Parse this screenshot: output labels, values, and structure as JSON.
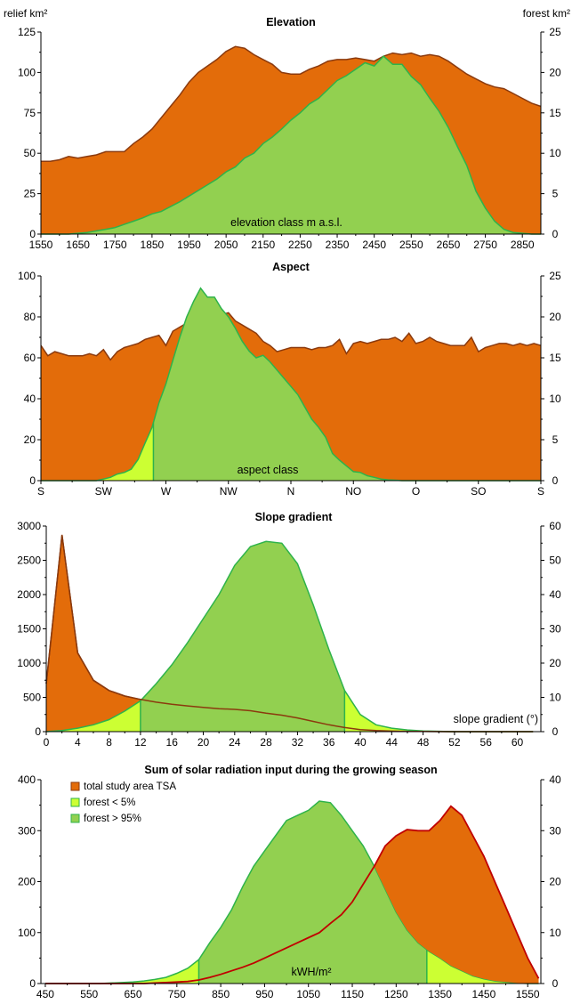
{
  "colors": {
    "relief_fill": "#E36C0A",
    "relief_line": "#8B3A0E",
    "forest_fill": "#92D050",
    "forest_line": "#2EB34A",
    "lowforest_fill": "#CCFF33",
    "lowforest_line": "#2EB34A",
    "radiation_line": "#C00000"
  },
  "axis_units": {
    "left": "relief km²",
    "right": "forest km²"
  },
  "chart_data": [
    {
      "id": "elevation",
      "type": "area",
      "title": "Elevation",
      "xlabel_inside": "elevation class m a.s.l.",
      "xlim": [
        1550,
        2900
      ],
      "ylim_left": [
        0,
        125
      ],
      "ylim_right": [
        0,
        25
      ],
      "xticks": [
        1550,
        1650,
        1750,
        1850,
        1950,
        2050,
        2150,
        2250,
        2350,
        2450,
        2550,
        2650,
        2750,
        2850
      ],
      "yticks_left": [
        0,
        25,
        50,
        75,
        100,
        125
      ],
      "yticks_right": [
        0,
        5,
        10,
        15,
        20,
        25
      ],
      "x": [
        1550,
        1575,
        1600,
        1625,
        1650,
        1675,
        1700,
        1725,
        1750,
        1775,
        1800,
        1825,
        1850,
        1875,
        1900,
        1925,
        1950,
        1975,
        2000,
        2025,
        2050,
        2075,
        2100,
        2125,
        2150,
        2175,
        2200,
        2225,
        2250,
        2275,
        2300,
        2325,
        2350,
        2375,
        2400,
        2425,
        2450,
        2475,
        2500,
        2525,
        2550,
        2575,
        2600,
        2625,
        2650,
        2675,
        2700,
        2725,
        2750,
        2775,
        2800,
        2825,
        2850,
        2875,
        2900
      ],
      "series": [
        {
          "name": "relief",
          "axis": "left",
          "values": [
            45,
            45,
            46,
            48,
            47,
            48,
            49,
            51,
            51,
            51,
            56,
            60,
            65,
            72,
            79,
            86,
            94,
            100,
            104,
            108,
            113,
            116,
            115,
            111,
            108,
            105,
            100,
            99,
            99,
            102,
            104,
            107,
            108,
            108,
            109,
            108,
            107,
            110,
            112,
            111,
            112,
            110,
            111,
            110,
            107,
            103,
            99,
            96,
            93,
            91,
            90,
            87,
            84,
            81,
            79
          ]
        },
        {
          "name": "forest",
          "axis": "right",
          "values": [
            0,
            0,
            0,
            0,
            0.1,
            0.2,
            0.4,
            0.6,
            0.8,
            1.2,
            1.6,
            2.0,
            2.5,
            2.8,
            3.4,
            4.0,
            4.7,
            5.4,
            6.1,
            6.8,
            7.7,
            8.3,
            9.4,
            10.0,
            11.2,
            12.0,
            13.0,
            14.1,
            15.0,
            16.1,
            16.8,
            17.9,
            19.0,
            19.6,
            20.4,
            21.2,
            20.8,
            22.0,
            21.0,
            21.0,
            19.5,
            18.5,
            16.8,
            15.2,
            13.2,
            10.8,
            8.5,
            5.3,
            3.2,
            1.6,
            0.6,
            0.2,
            0.1,
            0,
            0
          ]
        }
      ]
    },
    {
      "id": "aspect",
      "type": "area",
      "title": "Aspect",
      "xlabel_inside": "aspect class",
      "xlim": [
        0,
        360
      ],
      "ylim_left": [
        0,
        100
      ],
      "ylim_right": [
        0,
        25
      ],
      "xticks": [
        0,
        45,
        90,
        135,
        180,
        225,
        270,
        315,
        360
      ],
      "xticklabels": [
        "S",
        "SW",
        "W",
        "NW",
        "N",
        "NO",
        "O",
        "SO",
        "S"
      ],
      "yticks_left": [
        0,
        20,
        40,
        60,
        80,
        100
      ],
      "yticks_right": [
        0,
        5,
        10,
        15,
        20,
        25
      ],
      "lowforest_range": [
        81,
        251
      ],
      "x": [
        0,
        5,
        10,
        15,
        20,
        25,
        30,
        35,
        40,
        45,
        50,
        55,
        60,
        65,
        70,
        75,
        80,
        85,
        90,
        95,
        100,
        105,
        110,
        115,
        120,
        125,
        130,
        135,
        140,
        145,
        150,
        155,
        160,
        165,
        170,
        175,
        180,
        185,
        190,
        195,
        200,
        205,
        210,
        215,
        220,
        225,
        230,
        235,
        240,
        245,
        250,
        255,
        260,
        265,
        270,
        275,
        280,
        285,
        290,
        295,
        300,
        305,
        310,
        315,
        320,
        325,
        330,
        335,
        340,
        345,
        350,
        355,
        360
      ],
      "series": [
        {
          "name": "relief",
          "axis": "left",
          "values": [
            66,
            61,
            63,
            62,
            61,
            61,
            61,
            62,
            61,
            64,
            59,
            63,
            65,
            66,
            67,
            69,
            70,
            71,
            66,
            73,
            75,
            77,
            78,
            82,
            83,
            89,
            81,
            82,
            78,
            76,
            74,
            72,
            68,
            66,
            63,
            64,
            65,
            65,
            65,
            64,
            65,
            65,
            66,
            69,
            62,
            67,
            68,
            67,
            68,
            69,
            69,
            70,
            68,
            72,
            67,
            68,
            70,
            68,
            67,
            66,
            66,
            66,
            70,
            63,
            65,
            66,
            67,
            67,
            66,
            67,
            66,
            67,
            66
          ]
        },
        {
          "name": "forest",
          "axis": "right",
          "values": [
            0,
            0,
            0,
            0,
            0,
            0,
            0,
            0,
            0,
            0.2,
            0.4,
            0.8,
            1.0,
            1.4,
            2.6,
            4.6,
            6.5,
            9.5,
            11.8,
            14.7,
            17.5,
            20.0,
            21.9,
            23.5,
            22.4,
            22.4,
            21.0,
            20.0,
            18.6,
            17.0,
            15.8,
            15.0,
            15.3,
            14.5,
            13.5,
            12.5,
            11.5,
            10.5,
            9.0,
            7.5,
            6.5,
            5.3,
            3.3,
            2.5,
            1.8,
            1.1,
            1.0,
            0.6,
            0.4,
            0.2,
            0.1,
            0.05,
            0,
            0,
            0,
            0,
            0,
            0,
            0,
            0,
            0,
            0,
            0,
            0,
            0,
            0,
            0,
            0,
            0,
            0,
            0,
            0,
            0
          ]
        }
      ]
    },
    {
      "id": "slope",
      "type": "area",
      "title": "Slope gradient",
      "xlabel_inside": "slope gradient (°)",
      "xlim": [
        0,
        63
      ],
      "ylim_left": [
        0,
        3000
      ],
      "ylim_right": [
        0,
        60
      ],
      "xticks": [
        0,
        4,
        8,
        12,
        16,
        20,
        24,
        28,
        32,
        36,
        40,
        44,
        48,
        52,
        56,
        60
      ],
      "yticks_left": [
        0,
        500,
        1000,
        1500,
        2000,
        2500,
        3000
      ],
      "yticks_right": [
        0,
        10,
        20,
        30,
        40,
        50,
        60
      ],
      "lowforest_ranges": [
        [
          0,
          12
        ],
        [
          38,
          63
        ]
      ],
      "x": [
        0,
        2,
        4,
        6,
        8,
        10,
        12,
        14,
        16,
        18,
        20,
        22,
        24,
        26,
        28,
        30,
        32,
        34,
        36,
        38,
        40,
        42,
        44,
        46,
        48,
        50,
        52,
        54,
        56,
        58,
        60,
        62
      ],
      "series": [
        {
          "name": "relief",
          "axis": "left",
          "values": [
            700,
            2870,
            1150,
            750,
            600,
            520,
            470,
            430,
            400,
            375,
            355,
            335,
            325,
            305,
            270,
            240,
            200,
            150,
            100,
            60,
            30,
            15,
            8,
            4,
            2,
            1,
            0,
            0,
            0,
            0,
            0,
            0
          ]
        },
        {
          "name": "forest",
          "axis": "right",
          "values": [
            0,
            0.3,
            1.0,
            2.0,
            3.5,
            6.0,
            9.0,
            14.0,
            19.5,
            26.0,
            33.0,
            40.0,
            48.5,
            54.0,
            55.5,
            55.0,
            49.0,
            37.0,
            24.0,
            12.0,
            5.0,
            2.0,
            1.0,
            0.5,
            0.2,
            0.1,
            0,
            0,
            0,
            0,
            0,
            0
          ]
        }
      ]
    },
    {
      "id": "radiation",
      "type": "area",
      "title": "Sum of solar radiation input during the growing season",
      "xlabel_inside": "kWH/m²",
      "xlim": [
        440,
        1580
      ],
      "ylim_left": [
        0,
        400
      ],
      "ylim_right": [
        0,
        40
      ],
      "xticks": [
        450,
        550,
        650,
        750,
        850,
        950,
        1050,
        1150,
        1250,
        1350,
        1450,
        1550
      ],
      "yticks_left": [
        0,
        100,
        200,
        300,
        400
      ],
      "yticks_right": [
        0,
        10,
        20,
        30,
        40
      ],
      "lowforest_ranges": [
        [
          440,
          800
        ],
        [
          1320,
          1580
        ]
      ],
      "legend": [
        {
          "label": "total study area TSA",
          "swatch": "relief"
        },
        {
          "label": "forest < 5%",
          "swatch": "lowforest"
        },
        {
          "label": "forest  > 95%",
          "swatch": "forest"
        }
      ],
      "x": [
        450,
        475,
        500,
        525,
        550,
        575,
        600,
        625,
        650,
        675,
        700,
        725,
        750,
        775,
        800,
        825,
        850,
        875,
        900,
        925,
        950,
        975,
        1000,
        1025,
        1050,
        1075,
        1100,
        1125,
        1150,
        1175,
        1200,
        1225,
        1250,
        1275,
        1300,
        1325,
        1350,
        1375,
        1400,
        1425,
        1450,
        1475,
        1500,
        1525,
        1550,
        1575
      ],
      "series": [
        {
          "name": "relief",
          "axis": "left",
          "values": [
            0,
            0,
            0,
            0,
            0,
            0,
            0,
            0,
            0,
            0,
            1,
            2,
            3,
            4,
            7,
            12,
            18,
            25,
            32,
            40,
            50,
            60,
            70,
            80,
            90,
            100,
            118,
            135,
            160,
            195,
            230,
            270,
            290,
            302,
            300,
            300,
            320,
            348,
            330,
            290,
            250,
            200,
            150,
            100,
            50,
            10
          ]
        },
        {
          "name": "forest",
          "axis": "right",
          "values": [
            0,
            0,
            0,
            0,
            0,
            0,
            0.1,
            0.2,
            0.3,
            0.5,
            0.8,
            1.2,
            2.0,
            3.0,
            4.7,
            8.0,
            11.0,
            14.5,
            19.0,
            23.0,
            26.0,
            29.0,
            32.0,
            33.0,
            34.0,
            35.8,
            35.5,
            33.0,
            30.0,
            27.0,
            23.0,
            18.5,
            14.0,
            10.5,
            8.0,
            6.3,
            5.0,
            3.5,
            2.5,
            1.5,
            0.9,
            0.5,
            0.3,
            0.1,
            0,
            0
          ]
        }
      ]
    }
  ]
}
